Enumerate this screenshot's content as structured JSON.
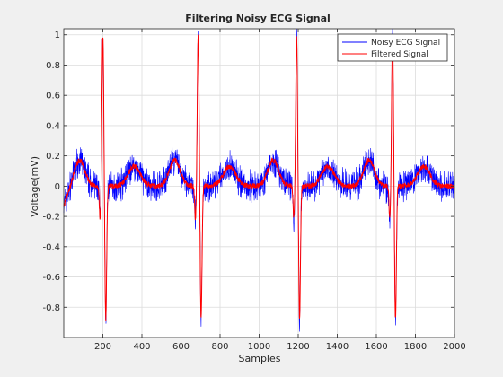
{
  "chart_data": {
    "type": "line",
    "title": "Filtering Noisy ECG Signal",
    "xlabel": "Samples",
    "ylabel": "Voltage(mV)",
    "xlim": [
      0,
      2000
    ],
    "ylim": [
      -1,
      1.04
    ],
    "xticks": [
      200,
      400,
      600,
      800,
      1000,
      1200,
      1400,
      1600,
      1800,
      2000
    ],
    "yticks": [
      -0.8,
      -0.6,
      -0.4,
      -0.2,
      0,
      0.2,
      0.4,
      0.6,
      0.8,
      1
    ],
    "grid": true,
    "legend_position": "top-right",
    "beat_peak_samples": [
      200,
      688,
      1192,
      1683
    ],
    "series": [
      {
        "name": "Noisy ECG Signal",
        "color": "#0000ff"
      },
      {
        "name": "Filtered Signal",
        "color": "#ff0000"
      }
    ],
    "filtered_key_points": [
      {
        "x": 0,
        "y": -0.15
      },
      {
        "x": 80,
        "y": 0.2
      },
      {
        "x": 200,
        "y": 1.0
      },
      {
        "x": 215,
        "y": -0.9
      },
      {
        "x": 688,
        "y": 0.9
      },
      {
        "x": 703,
        "y": -0.85
      },
      {
        "x": 1192,
        "y": 0.85
      },
      {
        "x": 1207,
        "y": -0.85
      },
      {
        "x": 1683,
        "y": 0.8
      },
      {
        "x": 1698,
        "y": -0.85
      },
      {
        "x": 2000,
        "y": 0.0
      }
    ]
  }
}
